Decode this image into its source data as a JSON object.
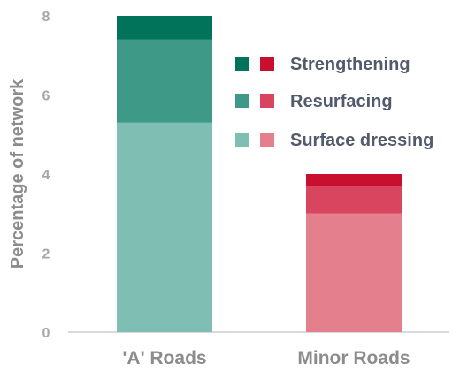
{
  "chart_data": {
    "type": "bar",
    "stacked": true,
    "categories": [
      "'A' Roads",
      "Minor Roads"
    ],
    "ylabel": "Percentage of network",
    "xlabel": "",
    "ylim": [
      0,
      8
    ],
    "yticks": [
      0,
      2,
      4,
      6,
      8
    ],
    "grid": false,
    "legend_position": "right",
    "series": [
      {
        "name": "Surface dressing",
        "values": [
          5.3,
          3.0
        ],
        "colors": [
          "#7fbfb3",
          "#e47f8e"
        ]
      },
      {
        "name": "Resurfacing",
        "values": [
          2.1,
          0.7
        ],
        "colors": [
          "#3e9a86",
          "#d9445e"
        ]
      },
      {
        "name": "Strengthening",
        "values": [
          0.6,
          0.3
        ],
        "colors": [
          "#00735a",
          "#c8102e"
        ]
      }
    ],
    "legend_order": [
      2,
      1,
      0
    ]
  }
}
